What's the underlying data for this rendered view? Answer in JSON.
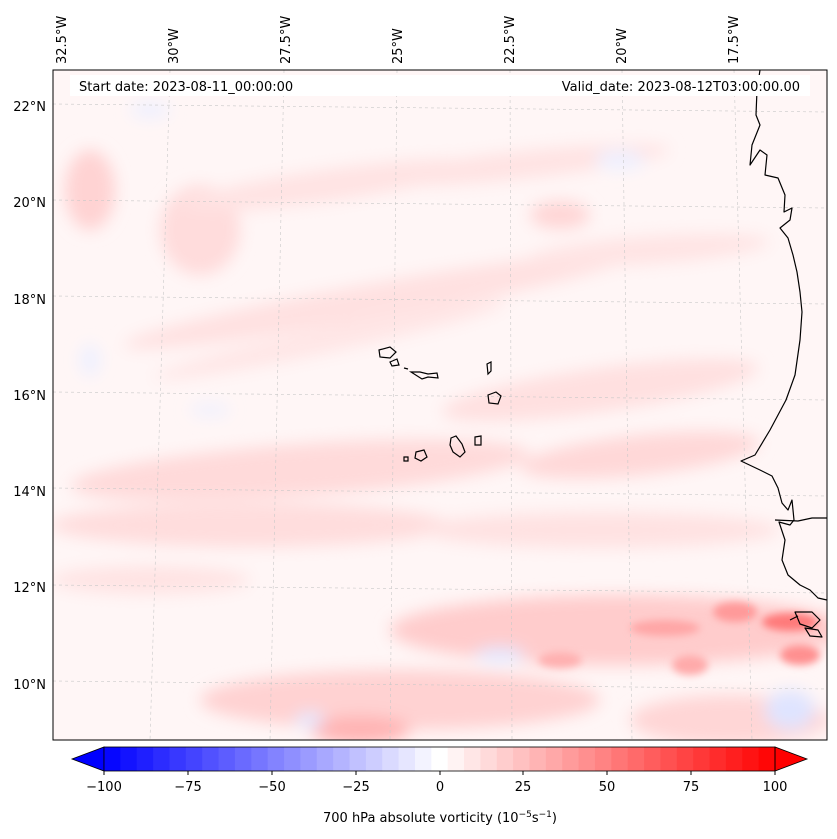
{
  "map": {
    "title_left": "Start date: 2023-08-11_00:00:00",
    "title_right": "Valid_date: 2023-08-12T03:00:00.00",
    "lon_labels": [
      "32.5°W",
      "30°W",
      "27.5°W",
      "25°W",
      "22.5°W",
      "20°W",
      "17.5°W"
    ],
    "lat_labels": [
      "22°N",
      "20°N",
      "18°N",
      "16°N",
      "14°N",
      "12°N",
      "10°N"
    ],
    "colorbar": {
      "label_prefix": "700 hPa absolute vorticity (10",
      "label_exp1": "−5",
      "label_mid": "s",
      "label_exp2": "−1",
      "label_suffix": ")",
      "ticks": [
        "−100",
        "−75",
        "−50",
        "−25",
        "0",
        "25",
        "50",
        "75",
        "100"
      ],
      "min": -100,
      "max": 100,
      "levels": 41
    },
    "colors": {
      "negative": "#0000ff",
      "neutral": "#ffffff",
      "positive": "#ff0000",
      "coastline": "#000000",
      "gridline": "#bbbbbb"
    }
  }
}
